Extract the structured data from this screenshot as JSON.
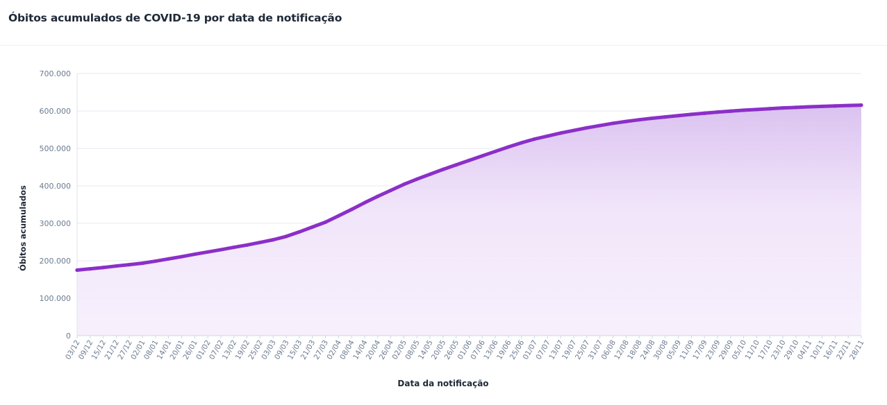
{
  "header": {
    "title": "Óbitos acumulados de COVID-19 por data de notificação"
  },
  "chart_data": {
    "type": "area",
    "title": "Óbitos acumulados de COVID-19 por data de notificação",
    "xlabel": "Data da notificação",
    "ylabel": "Óbitos acumulados",
    "ylim": [
      0,
      700000
    ],
    "y_ticks": [
      {
        "value": 0,
        "label": "0"
      },
      {
        "value": 100000,
        "label": "100.000"
      },
      {
        "value": 200000,
        "label": "200.000"
      },
      {
        "value": 300000,
        "label": "300.000"
      },
      {
        "value": 400000,
        "label": "400.000"
      },
      {
        "value": 500000,
        "label": "500.000"
      },
      {
        "value": 600000,
        "label": "600.000"
      },
      {
        "value": 700000,
        "label": "700.000"
      }
    ],
    "grid": true,
    "legend": "none",
    "colors": {
      "line": "#8b2fc9",
      "fill_top": "#d9bfef",
      "fill_bottom": "#f6effc",
      "grid": "#e7eaf2",
      "tick_text": "#6b7a90"
    },
    "x": [
      "03/12",
      "09/12",
      "15/12",
      "21/12",
      "27/12",
      "02/01",
      "08/01",
      "14/01",
      "20/01",
      "26/01",
      "01/02",
      "07/02",
      "13/02",
      "19/02",
      "25/02",
      "03/03",
      "09/03",
      "15/03",
      "21/03",
      "27/03",
      "02/04",
      "08/04",
      "14/04",
      "20/04",
      "26/04",
      "02/05",
      "08/05",
      "14/05",
      "20/05",
      "26/05",
      "01/06",
      "07/06",
      "13/06",
      "19/06",
      "25/06",
      "01/07",
      "07/07",
      "13/07",
      "19/07",
      "25/07",
      "31/07",
      "06/08",
      "12/08",
      "18/08",
      "24/08",
      "30/08",
      "05/09",
      "11/09",
      "17/09",
      "23/09",
      "29/09",
      "05/10",
      "11/10",
      "17/10",
      "23/10",
      "29/10",
      "04/11",
      "10/11",
      "16/11",
      "22/11",
      "28/11"
    ],
    "series": [
      {
        "values": [
          175000,
          178500,
          182000,
          186000,
          189500,
          193500,
          199000,
          205000,
          211000,
          217500,
          223500,
          229500,
          236000,
          242000,
          249000,
          256000,
          265000,
          277000,
          290000,
          303000,
          320000,
          337000,
          355000,
          372000,
          388000,
          404000,
          418000,
          431000,
          444000,
          456000,
          468000,
          480000,
          492000,
          504000,
          515000,
          525000,
          533000,
          541000,
          548000,
          555000,
          561000,
          567000,
          572000,
          576500,
          580500,
          584000,
          587500,
          591000,
          594000,
          597000,
          599500,
          602000,
          604000,
          606000,
          608000,
          609500,
          611000,
          612200,
          613400,
          614500,
          615600
        ]
      }
    ]
  }
}
